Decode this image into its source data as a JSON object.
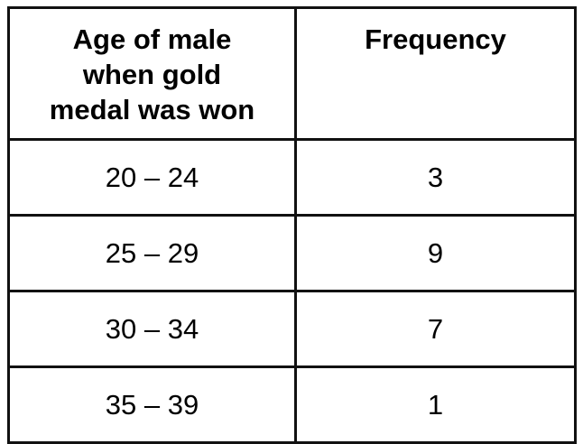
{
  "table": {
    "headers": {
      "age_lines": [
        "Age of male",
        "when gold",
        "medal was won"
      ],
      "frequency": "Frequency"
    },
    "rows": [
      {
        "age_range": "20 – 24",
        "frequency": "3"
      },
      {
        "age_range": "25 – 29",
        "frequency": "9"
      },
      {
        "age_range": "30 – 34",
        "frequency": "7"
      },
      {
        "age_range": "35 – 39",
        "frequency": "1"
      }
    ]
  }
}
